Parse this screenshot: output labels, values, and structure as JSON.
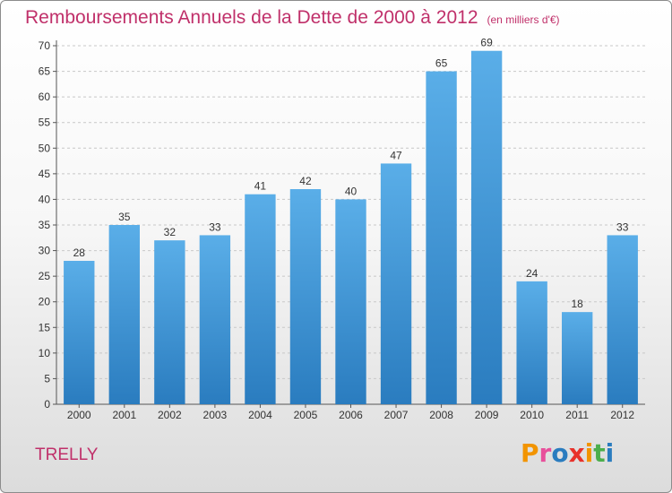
{
  "header": {
    "title": "Remboursements Annuels de la Dette de 2000 à 2012",
    "unit": "(en milliers d'€)"
  },
  "footer": {
    "commune": "TRELLY",
    "logo_text": "Proxiti"
  },
  "colors": {
    "title": "#c0306a",
    "bar_top": "#5aaee8",
    "bar_bottom": "#2a7cbf",
    "logo_letters": [
      "#f29400",
      "#e84f9b",
      "#2a7cbf",
      "#e8312a",
      "#f29400",
      "#4cae4c",
      "#2a7cbf"
    ]
  },
  "chart_data": {
    "type": "bar",
    "categories": [
      "2000",
      "2001",
      "2002",
      "2003",
      "2004",
      "2005",
      "2006",
      "2007",
      "2008",
      "2009",
      "2010",
      "2011",
      "2012"
    ],
    "values": [
      28,
      35,
      32,
      33,
      41,
      42,
      40,
      47,
      65,
      69,
      24,
      18,
      33
    ],
    "title": "Remboursements Annuels de la Dette de 2000 à 2012",
    "subtitle": "(en milliers d'€)",
    "xlabel": "",
    "ylabel": "",
    "ylim": [
      0,
      70
    ],
    "yticks": [
      0,
      5,
      10,
      15,
      20,
      25,
      30,
      35,
      40,
      45,
      50,
      55,
      60,
      65,
      70
    ],
    "grid": true,
    "legend": "none",
    "data_labels": true
  }
}
